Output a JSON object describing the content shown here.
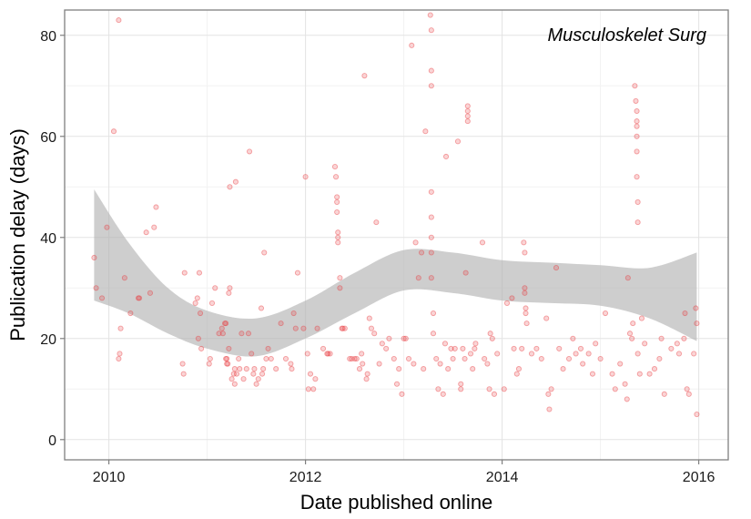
{
  "chart_data": {
    "type": "scatter",
    "annotation": "Musculoskelet Surg",
    "xlabel": "Date published online",
    "ylabel": "Publication delay (days)",
    "x_unit": "year",
    "xlim": [
      2009.55,
      2016.3
    ],
    "ylim": [
      -4,
      85
    ],
    "x_ticks": [
      2010,
      2012,
      2014,
      2016
    ],
    "x_tick_labels": [
      "2010",
      "2012",
      "2014",
      "2016"
    ],
    "y_ticks": [
      0,
      20,
      40,
      60,
      80
    ],
    "y_tick_labels": [
      "0",
      "20",
      "40",
      "60",
      "80"
    ],
    "grid": true,
    "point_color": "#e8393f",
    "band_color": "#b3b3b3",
    "points": [
      [
        2009.85,
        36
      ],
      [
        2009.87,
        30
      ],
      [
        2009.93,
        28
      ],
      [
        2009.98,
        42
      ],
      [
        2010.05,
        61
      ],
      [
        2010.1,
        83
      ],
      [
        2010.11,
        17
      ],
      [
        2010.1,
        16
      ],
      [
        2010.12,
        22
      ],
      [
        2010.16,
        32
      ],
      [
        2010.22,
        25
      ],
      [
        2010.3,
        28
      ],
      [
        2010.31,
        28
      ],
      [
        2010.38,
        41
      ],
      [
        2010.42,
        29
      ],
      [
        2010.46,
        42
      ],
      [
        2010.48,
        46
      ],
      [
        2010.75,
        15
      ],
      [
        2010.76,
        13
      ],
      [
        2010.77,
        33
      ],
      [
        2010.88,
        27
      ],
      [
        2010.9,
        28
      ],
      [
        2010.91,
        20
      ],
      [
        2010.92,
        33
      ],
      [
        2010.93,
        25
      ],
      [
        2010.94,
        18
      ],
      [
        2011.02,
        15
      ],
      [
        2011.03,
        16
      ],
      [
        2011.05,
        27
      ],
      [
        2011.08,
        30
      ],
      [
        2011.12,
        21
      ],
      [
        2011.15,
        22
      ],
      [
        2011.16,
        21
      ],
      [
        2011.18,
        23
      ],
      [
        2011.19,
        23
      ],
      [
        2011.19,
        16
      ],
      [
        2011.2,
        15
      ],
      [
        2011.2,
        16
      ],
      [
        2011.21,
        15
      ],
      [
        2011.22,
        18
      ],
      [
        2011.22,
        29
      ],
      [
        2011.23,
        30
      ],
      [
        2011.23,
        50
      ],
      [
        2011.25,
        12
      ],
      [
        2011.27,
        13
      ],
      [
        2011.28,
        11
      ],
      [
        2011.28,
        14
      ],
      [
        2011.29,
        51
      ],
      [
        2011.3,
        13
      ],
      [
        2011.32,
        16
      ],
      [
        2011.33,
        14
      ],
      [
        2011.35,
        21
      ],
      [
        2011.37,
        12
      ],
      [
        2011.4,
        14
      ],
      [
        2011.42,
        21
      ],
      [
        2011.43,
        57
      ],
      [
        2011.45,
        17
      ],
      [
        2011.47,
        13
      ],
      [
        2011.48,
        14
      ],
      [
        2011.5,
        11
      ],
      [
        2011.52,
        12
      ],
      [
        2011.55,
        26
      ],
      [
        2011.56,
        13
      ],
      [
        2011.57,
        14
      ],
      [
        2011.58,
        37
      ],
      [
        2011.6,
        16
      ],
      [
        2011.62,
        18
      ],
      [
        2011.65,
        16
      ],
      [
        2011.7,
        14
      ],
      [
        2011.75,
        23
      ],
      [
        2011.8,
        16
      ],
      [
        2011.85,
        15
      ],
      [
        2011.86,
        14
      ],
      [
        2011.88,
        25
      ],
      [
        2011.9,
        22
      ],
      [
        2011.92,
        33
      ],
      [
        2011.98,
        22
      ],
      [
        2012.0,
        52
      ],
      [
        2012.02,
        17
      ],
      [
        2012.03,
        10
      ],
      [
        2012.05,
        13
      ],
      [
        2012.08,
        10
      ],
      [
        2012.1,
        12
      ],
      [
        2012.12,
        22
      ],
      [
        2012.18,
        18
      ],
      [
        2012.22,
        17
      ],
      [
        2012.23,
        17
      ],
      [
        2012.25,
        17
      ],
      [
        2012.3,
        54
      ],
      [
        2012.31,
        52
      ],
      [
        2012.32,
        48
      ],
      [
        2012.32,
        47
      ],
      [
        2012.32,
        45
      ],
      [
        2012.33,
        41
      ],
      [
        2012.33,
        40
      ],
      [
        2012.33,
        39
      ],
      [
        2012.35,
        32
      ],
      [
        2012.35,
        30
      ],
      [
        2012.37,
        22
      ],
      [
        2012.38,
        22
      ],
      [
        2012.4,
        22
      ],
      [
        2012.45,
        16
      ],
      [
        2012.47,
        16
      ],
      [
        2012.5,
        16
      ],
      [
        2012.52,
        16
      ],
      [
        2012.55,
        14
      ],
      [
        2012.57,
        17
      ],
      [
        2012.58,
        15
      ],
      [
        2012.6,
        72
      ],
      [
        2012.62,
        12
      ],
      [
        2012.63,
        13
      ],
      [
        2012.65,
        24
      ],
      [
        2012.67,
        22
      ],
      [
        2012.7,
        21
      ],
      [
        2012.72,
        43
      ],
      [
        2012.75,
        15
      ],
      [
        2012.78,
        19
      ],
      [
        2012.82,
        18
      ],
      [
        2012.85,
        20
      ],
      [
        2012.9,
        16
      ],
      [
        2012.93,
        11
      ],
      [
        2012.95,
        14
      ],
      [
        2012.98,
        9
      ],
      [
        2013.0,
        20
      ],
      [
        2013.02,
        20
      ],
      [
        2013.05,
        16
      ],
      [
        2013.08,
        78
      ],
      [
        2013.1,
        15
      ],
      [
        2013.12,
        39
      ],
      [
        2013.15,
        32
      ],
      [
        2013.18,
        37
      ],
      [
        2013.2,
        14
      ],
      [
        2013.22,
        61
      ],
      [
        2013.27,
        84
      ],
      [
        2013.28,
        81
      ],
      [
        2013.28,
        73
      ],
      [
        2013.28,
        70
      ],
      [
        2013.28,
        49
      ],
      [
        2013.28,
        44
      ],
      [
        2013.28,
        40
      ],
      [
        2013.28,
        37
      ],
      [
        2013.28,
        32
      ],
      [
        2013.3,
        25
      ],
      [
        2013.3,
        21
      ],
      [
        2013.33,
        16
      ],
      [
        2013.35,
        10
      ],
      [
        2013.37,
        15
      ],
      [
        2013.4,
        9
      ],
      [
        2013.42,
        19
      ],
      [
        2013.43,
        56
      ],
      [
        2013.45,
        14
      ],
      [
        2013.48,
        18
      ],
      [
        2013.5,
        16
      ],
      [
        2013.52,
        18
      ],
      [
        2013.55,
        59
      ],
      [
        2013.58,
        10
      ],
      [
        2013.58,
        11
      ],
      [
        2013.6,
        18
      ],
      [
        2013.62,
        16
      ],
      [
        2013.63,
        33
      ],
      [
        2013.65,
        66
      ],
      [
        2013.65,
        65
      ],
      [
        2013.65,
        64
      ],
      [
        2013.65,
        63
      ],
      [
        2013.68,
        17
      ],
      [
        2013.7,
        14
      ],
      [
        2013.72,
        18
      ],
      [
        2013.73,
        19
      ],
      [
        2013.8,
        39
      ],
      [
        2013.82,
        16
      ],
      [
        2013.85,
        15
      ],
      [
        2013.87,
        10
      ],
      [
        2013.88,
        21
      ],
      [
        2013.9,
        20
      ],
      [
        2013.92,
        9
      ],
      [
        2013.95,
        17
      ],
      [
        2014.02,
        10
      ],
      [
        2014.05,
        27
      ],
      [
        2014.1,
        28
      ],
      [
        2014.12,
        18
      ],
      [
        2014.15,
        13
      ],
      [
        2014.17,
        14
      ],
      [
        2014.2,
        18
      ],
      [
        2014.22,
        39
      ],
      [
        2014.23,
        37
      ],
      [
        2014.23,
        30
      ],
      [
        2014.23,
        29
      ],
      [
        2014.24,
        26
      ],
      [
        2014.24,
        25
      ],
      [
        2014.25,
        23
      ],
      [
        2014.3,
        17
      ],
      [
        2014.35,
        18
      ],
      [
        2014.4,
        16
      ],
      [
        2014.45,
        24
      ],
      [
        2014.47,
        9
      ],
      [
        2014.48,
        6
      ],
      [
        2014.5,
        10
      ],
      [
        2014.55,
        34
      ],
      [
        2014.58,
        18
      ],
      [
        2014.62,
        14
      ],
      [
        2014.68,
        16
      ],
      [
        2014.72,
        20
      ],
      [
        2014.75,
        17
      ],
      [
        2014.8,
        18
      ],
      [
        2014.82,
        15
      ],
      [
        2014.88,
        17
      ],
      [
        2014.92,
        13
      ],
      [
        2014.95,
        19
      ],
      [
        2015.0,
        16
      ],
      [
        2015.05,
        25
      ],
      [
        2015.12,
        13
      ],
      [
        2015.15,
        10
      ],
      [
        2015.2,
        15
      ],
      [
        2015.25,
        11
      ],
      [
        2015.27,
        8
      ],
      [
        2015.28,
        32
      ],
      [
        2015.3,
        21
      ],
      [
        2015.32,
        20
      ],
      [
        2015.33,
        23
      ],
      [
        2015.35,
        70
      ],
      [
        2015.36,
        67
      ],
      [
        2015.37,
        65
      ],
      [
        2015.37,
        63
      ],
      [
        2015.37,
        62
      ],
      [
        2015.37,
        60
      ],
      [
        2015.37,
        57
      ],
      [
        2015.37,
        52
      ],
      [
        2015.38,
        47
      ],
      [
        2015.38,
        43
      ],
      [
        2015.38,
        17
      ],
      [
        2015.4,
        13
      ],
      [
        2015.42,
        24
      ],
      [
        2015.45,
        19
      ],
      [
        2015.5,
        13
      ],
      [
        2015.55,
        14
      ],
      [
        2015.6,
        16
      ],
      [
        2015.62,
        20
      ],
      [
        2015.65,
        9
      ],
      [
        2015.72,
        18
      ],
      [
        2015.78,
        19
      ],
      [
        2015.8,
        17
      ],
      [
        2015.85,
        20
      ],
      [
        2015.86,
        25
      ],
      [
        2015.88,
        10
      ],
      [
        2015.9,
        9
      ],
      [
        2015.95,
        17
      ],
      [
        2015.97,
        26
      ],
      [
        2015.98,
        23
      ],
      [
        2015.98,
        5
      ]
    ],
    "smooth": {
      "x": [
        2009.85,
        2010.2,
        2010.6,
        2011.0,
        2011.5,
        2012.0,
        2012.5,
        2013.0,
        2013.5,
        2014.0,
        2014.5,
        2015.0,
        2015.5,
        2015.98
      ],
      "upper": [
        49.5,
        39.0,
        30.0,
        25.5,
        24.0,
        27.5,
        33.0,
        37.5,
        37.0,
        35.5,
        35.0,
        34.5,
        34.0,
        37.0
      ],
      "lower": [
        27.5,
        25.0,
        21.0,
        18.0,
        16.5,
        20.0,
        25.0,
        29.5,
        29.0,
        27.5,
        27.0,
        26.5,
        24.0,
        19.5
      ]
    }
  }
}
